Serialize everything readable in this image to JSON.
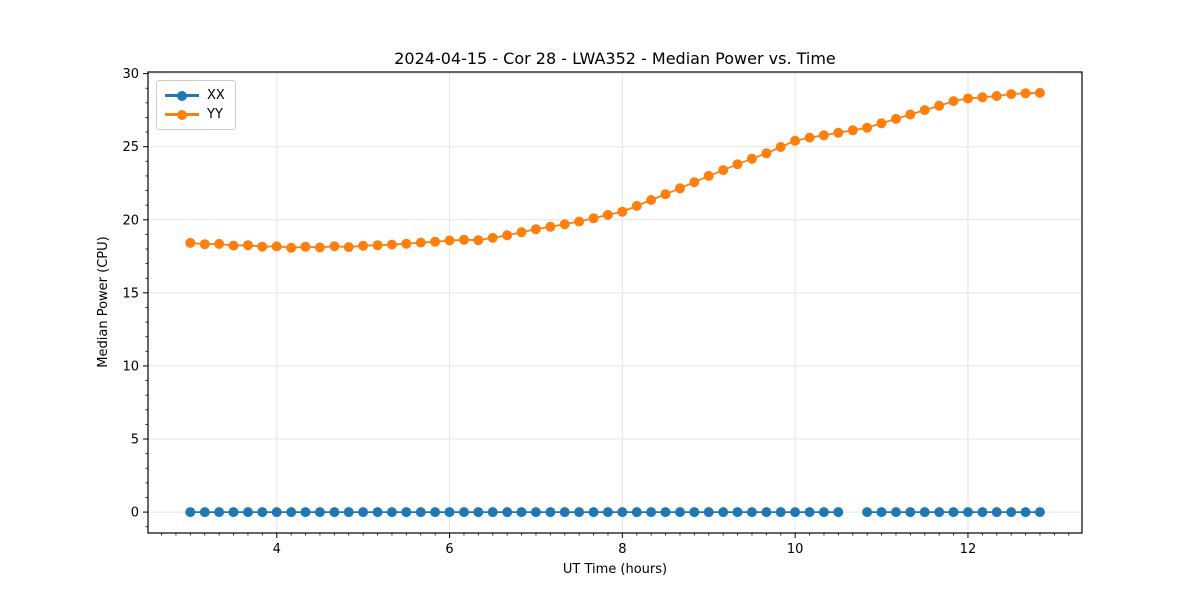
{
  "title": "2024-04-15 - Cor 28 - LWA352 - Median Power vs. Time",
  "chart_data": {
    "type": "line",
    "title": "2024-04-15 - Cor 28 - LWA352 - Median Power vs. Time",
    "xlabel": "UT Time (hours)",
    "ylabel": "Median Power (CPU)",
    "xlim": [
      2.51,
      13.32
    ],
    "ylim": [
      -1.43,
      30.11
    ],
    "xticks": [
      4,
      6,
      8,
      10,
      12
    ],
    "yticks": [
      0,
      5,
      10,
      15,
      20,
      25,
      30
    ],
    "x_minor_step": 0.16667,
    "y_minor_step": 1,
    "grid": true,
    "grid_color": "#e4e4e4",
    "legend_position": "upper-left",
    "x": [
      3.0,
      3.167,
      3.333,
      3.5,
      3.667,
      3.833,
      4.0,
      4.167,
      4.333,
      4.5,
      4.667,
      4.833,
      5.0,
      5.167,
      5.333,
      5.5,
      5.667,
      5.833,
      6.0,
      6.167,
      6.333,
      6.5,
      6.667,
      6.833,
      7.0,
      7.167,
      7.333,
      7.5,
      7.667,
      7.833,
      8.0,
      8.167,
      8.333,
      8.5,
      8.667,
      8.833,
      9.0,
      9.167,
      9.333,
      9.5,
      9.667,
      9.833,
      10.0,
      10.167,
      10.333,
      10.5,
      10.667,
      10.833,
      11.0,
      11.167,
      11.333,
      11.5,
      11.667,
      11.833,
      12.0,
      12.167,
      12.333,
      12.5,
      12.667,
      12.833
    ],
    "series": [
      {
        "name": "XX",
        "color": "#1f77b4",
        "values": [
          0,
          0,
          0,
          0,
          0,
          0,
          0,
          0,
          0,
          0,
          0,
          0,
          0,
          0,
          0,
          0,
          0,
          0,
          0,
          0,
          0,
          0,
          0,
          0,
          0,
          0,
          0,
          0,
          0,
          0,
          0,
          0,
          0,
          0,
          0,
          0,
          0,
          0,
          0,
          0,
          0,
          0,
          0,
          0,
          0,
          0,
          null,
          0,
          0,
          0,
          0,
          0,
          0,
          0,
          0,
          0,
          0,
          0,
          0,
          0
        ]
      },
      {
        "name": "YY",
        "color": "#ff7f0e",
        "values": [
          18.42,
          18.33,
          18.35,
          18.23,
          18.26,
          18.16,
          18.18,
          18.08,
          18.15,
          18.1,
          18.19,
          18.13,
          18.22,
          18.26,
          18.3,
          18.36,
          18.44,
          18.49,
          18.58,
          18.63,
          18.6,
          18.76,
          18.94,
          19.15,
          19.35,
          19.52,
          19.69,
          19.88,
          20.1,
          20.33,
          20.55,
          20.95,
          21.35,
          21.75,
          22.15,
          22.57,
          23.0,
          23.4,
          23.8,
          24.18,
          24.55,
          24.98,
          25.4,
          25.62,
          25.78,
          25.95,
          26.12,
          26.3,
          26.6,
          26.9,
          27.2,
          27.5,
          27.8,
          28.12,
          28.3,
          28.38,
          28.47,
          28.6,
          28.65,
          28.68
        ]
      }
    ]
  }
}
